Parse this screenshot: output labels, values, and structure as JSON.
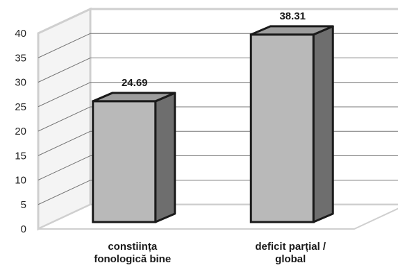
{
  "chart_data": {
    "type": "bar",
    "categories": [
      [
        "constiința",
        "fonologică bine"
      ],
      [
        "deficit parțial /",
        "global"
      ]
    ],
    "values": [
      24.69,
      38.31
    ],
    "value_labels": [
      "24.69",
      "38.31"
    ],
    "ylim": [
      0,
      40
    ],
    "yticks": [
      "0",
      "5",
      "10",
      "15",
      "20",
      "25",
      "30",
      "35",
      "40"
    ],
    "grid": true,
    "style": "3d-bar",
    "colors": {
      "bar_front": "#b9b9b9",
      "bar_top": "#9d9d9d",
      "bar_side": "#6e6e6e",
      "outline": "#1a1a1a",
      "wall": "#cfcfcf"
    }
  }
}
